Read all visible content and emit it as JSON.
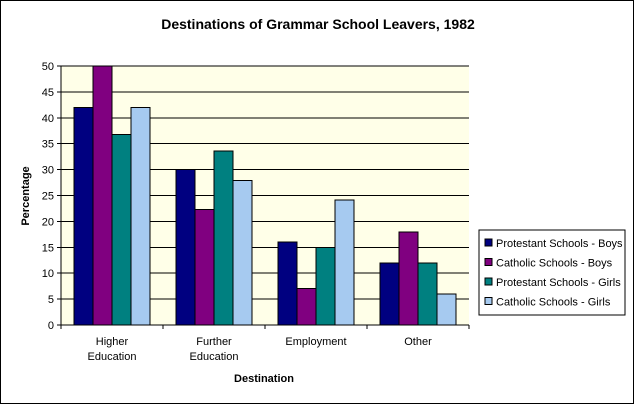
{
  "chart_data": {
    "type": "bar",
    "title": "Destinations of Grammar School Leavers, 1982",
    "xlabel": "Destination",
    "ylabel": "Percentage",
    "ylim": [
      0,
      50
    ],
    "yticks": [
      0,
      5,
      10,
      15,
      20,
      25,
      30,
      35,
      40,
      45,
      50
    ],
    "grid": true,
    "legend_position": "right",
    "categories": [
      [
        "Higher",
        "Education"
      ],
      [
        "Further",
        "Education"
      ],
      [
        "Employment"
      ],
      [
        "Other"
      ]
    ],
    "series": [
      {
        "name": "Protestant Schools - Boys",
        "color": "#000080",
        "values": [
          42,
          30,
          16,
          12
        ]
      },
      {
        "name": "Catholic Schools - Boys",
        "color": "#800080",
        "values": [
          50,
          22.3,
          7,
          18
        ]
      },
      {
        "name": "Protestant Schools - Girls",
        "color": "#008080",
        "values": [
          36.8,
          33.6,
          15,
          12
        ]
      },
      {
        "name": "Catholic Schools - Girls",
        "color": "#A6CAF0",
        "values": [
          42,
          27.9,
          24.1,
          6
        ]
      }
    ],
    "plot_background": "#FFFFE8"
  }
}
